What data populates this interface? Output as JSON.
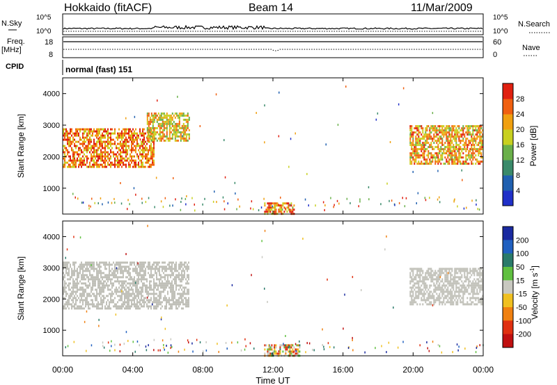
{
  "header": {
    "station": "Hokkaido (fitACF)",
    "beam": "Beam 14",
    "date": "11/Mar/2009"
  },
  "top_panels": {
    "nsky_label": "N.Sky",
    "nsky_ticks": [
      "10^5",
      "10^0"
    ],
    "nsearch_label": "N.Search",
    "nsearch_ticks": [
      "10^5",
      "10^0"
    ],
    "freq_label": "Freq.",
    "freq_unit": "[MHz]",
    "freq_ticks": [
      "18",
      "8"
    ],
    "nave_label": "Nave",
    "nave_ticks": [
      "60",
      "0"
    ],
    "cpid_label": "CPID",
    "cpid_text": "normal (fast) 151"
  },
  "colors": {
    "power_scale": [
      "#2030c8",
      "#2060b0",
      "#3a8a6a",
      "#6ab04a",
      "#c8d020",
      "#f0a010",
      "#f06010",
      "#e02010"
    ],
    "velocity_scale": [
      "#1a2aa0",
      "#2060c0",
      "#2a7a6a",
      "#60c040",
      "#c8c8c0",
      "#f0c020",
      "#f08010",
      "#e03010",
      "#c01010"
    ],
    "ground_scatter": "#c0c0b8"
  },
  "chart_data": [
    {
      "type": "heatmap",
      "name": "power",
      "xlabel": "",
      "ylabel": "Slant Range [km]",
      "xlim": [
        0,
        24
      ],
      "ylim": [
        180,
        4500
      ],
      "yticks": [
        "1000",
        "2000",
        "3000",
        "4000"
      ],
      "colorbar_label": "Power [dB]",
      "colorbar_ticks": [
        "4",
        "8",
        "12",
        "16",
        "20",
        "24",
        "28"
      ],
      "clim": [
        0,
        32
      ],
      "regions": [
        {
          "t0": 0.0,
          "t1": 5.2,
          "r0": 1700,
          "r1": 2900,
          "level": 24
        },
        {
          "t0": 4.8,
          "t1": 7.2,
          "r0": 2500,
          "r1": 3400,
          "level": 20
        },
        {
          "t0": 11.5,
          "t1": 13.2,
          "r0": 200,
          "r1": 550,
          "level": 24
        },
        {
          "t0": 19.8,
          "t1": 24.0,
          "r0": 1800,
          "r1": 3000,
          "level": 22
        }
      ]
    },
    {
      "type": "heatmap",
      "name": "velocity",
      "xlabel": "Time UT",
      "ylabel": "Slant Range [km]",
      "xlim": [
        0,
        24
      ],
      "ylim": [
        180,
        4500
      ],
      "xticks": [
        "00:00",
        "04:00",
        "08:00",
        "12:00",
        "16:00",
        "20:00",
        "00:00"
      ],
      "yticks": [
        "1000",
        "2000",
        "3000",
        "4000"
      ],
      "colorbar_label": "Velocity",
      "colorbar_unit": "[m s",
      "colorbar_unit_exp": "-1",
      "colorbar_unit_close": "]",
      "colorbar_ticks": [
        "200",
        "100",
        "50",
        "15",
        "-15",
        "-50",
        "-100",
        "-200"
      ],
      "clim": [
        -250,
        250
      ],
      "regions": [
        {
          "t0": 0.0,
          "t1": 7.2,
          "r0": 1700,
          "r1": 3200,
          "level": 0
        },
        {
          "t0": 19.8,
          "t1": 24.0,
          "r0": 1800,
          "r1": 3000,
          "level": 0
        },
        {
          "t0": 11.5,
          "t1": 13.5,
          "r0": 200,
          "r1": 550,
          "level": 40
        }
      ]
    }
  ],
  "xaxis": {
    "ticks": [
      "00:00",
      "04:00",
      "08:00",
      "12:00",
      "16:00",
      "20:00",
      "00:00"
    ],
    "label": "Time UT"
  }
}
